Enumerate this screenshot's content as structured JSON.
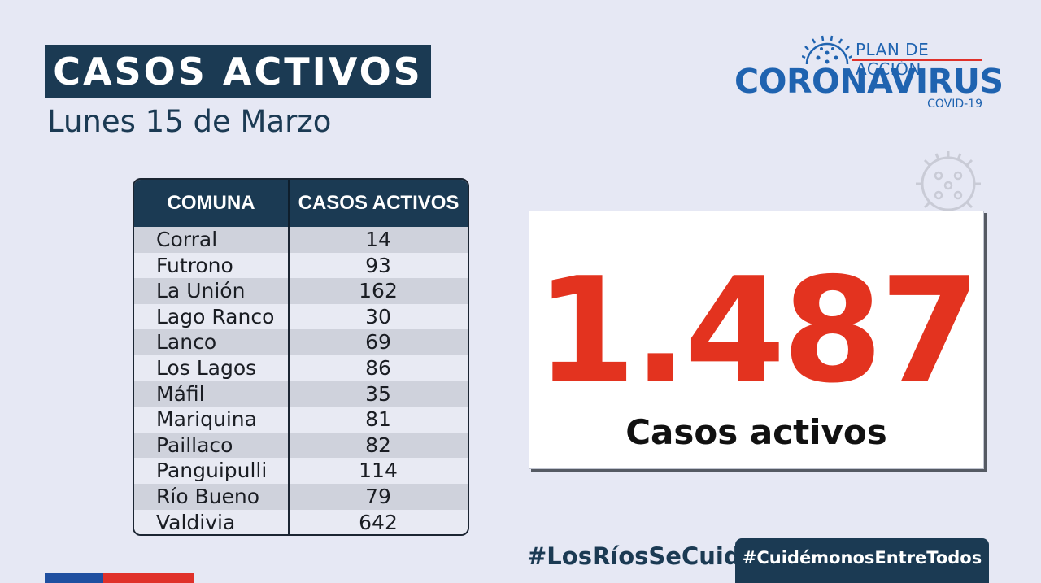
{
  "header": {
    "title": "CASOS ACTIVOS",
    "date": "Lunes 15 de Marzo"
  },
  "logo": {
    "plan": "PLAN DE ACCIÓN",
    "name": "CORONAVIRUS",
    "sub": "COVID-19",
    "icon": "virus-icon",
    "color": "#1f63b0"
  },
  "table": {
    "headers": [
      "COMUNA",
      "CASOS ACTIVOS"
    ],
    "rows": [
      {
        "comuna": "Corral",
        "casos": "14"
      },
      {
        "comuna": "Futrono",
        "casos": "93"
      },
      {
        "comuna": "La Unión",
        "casos": "162"
      },
      {
        "comuna": "Lago Ranco",
        "casos": "30"
      },
      {
        "comuna": "Lanco",
        "casos": "69"
      },
      {
        "comuna": "Los Lagos",
        "casos": "86"
      },
      {
        "comuna": "Máfil",
        "casos": "35"
      },
      {
        "comuna": "Mariquina",
        "casos": "81"
      },
      {
        "comuna": "Paillaco",
        "casos": "82"
      },
      {
        "comuna": "Panguipulli",
        "casos": "114"
      },
      {
        "comuna": "Río Bueno",
        "casos": "79"
      },
      {
        "comuna": "Valdivia",
        "casos": "642"
      }
    ]
  },
  "total": {
    "value": "1.487",
    "label": "Casos activos",
    "color": "#e3331f"
  },
  "footer": {
    "hashtag1": "#LosRíosSeCuida",
    "hashtag2": "#CuidémonosEntreTodos"
  },
  "colors": {
    "navy": "#1b3a53",
    "background": "#e6e8f4",
    "red": "#e0312a"
  }
}
